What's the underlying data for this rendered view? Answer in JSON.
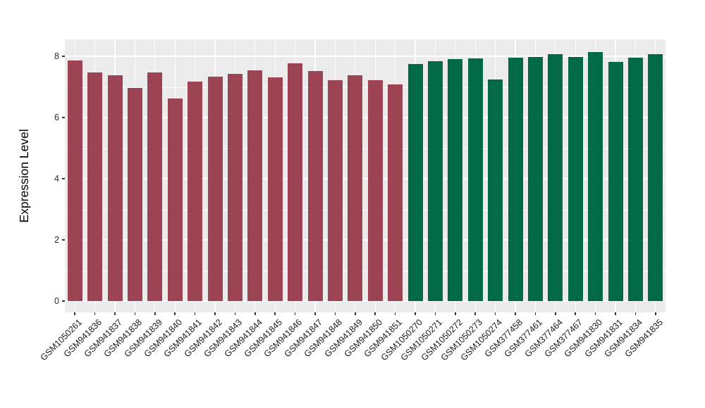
{
  "chart_data": {
    "type": "bar",
    "title": "",
    "xlabel": "",
    "ylabel": "Expression Level",
    "yticks": [
      0,
      2,
      4,
      6,
      8
    ],
    "ylim": [
      0,
      8.56
    ],
    "grid": "major-and-minor-horizontal, major-vertical-at-category-centers",
    "legend": "none",
    "panel_background": "#EBEBEB",
    "gridline_color": "#FFFFFF",
    "tick_mark_color": "#333333",
    "categories": [
      "GSM1050261",
      "GSM941836",
      "GSM941837",
      "GSM941838",
      "GSM941839",
      "GSM941840",
      "GSM941841",
      "GSM941842",
      "GSM941843",
      "GSM941844",
      "GSM941845",
      "GSM941846",
      "GSM941847",
      "GSM941848",
      "GSM941849",
      "GSM941850",
      "GSM941851",
      "GSM1050270",
      "GSM1050271",
      "GSM1050272",
      "GSM1050273",
      "GSM1050274",
      "GSM377458",
      "GSM377461",
      "GSM377464",
      "GSM377467",
      "GSM941830",
      "GSM941831",
      "GSM941834",
      "GSM941835"
    ],
    "values": [
      7.87,
      7.47,
      7.38,
      6.97,
      7.47,
      6.61,
      7.17,
      7.34,
      7.43,
      7.53,
      7.31,
      7.78,
      7.52,
      7.21,
      7.38,
      7.21,
      7.09,
      7.75,
      7.85,
      7.9,
      7.92,
      7.23,
      7.95,
      7.98,
      8.08,
      7.97,
      8.14,
      7.81,
      7.96,
      8.08
    ],
    "groups": [
      {
        "name": "group-1",
        "color": "#9C4454",
        "first_bar": 0,
        "last_bar": 16
      },
      {
        "name": "group-2",
        "color": "#006A47",
        "first_bar": 17,
        "last_bar": 29
      }
    ]
  }
}
